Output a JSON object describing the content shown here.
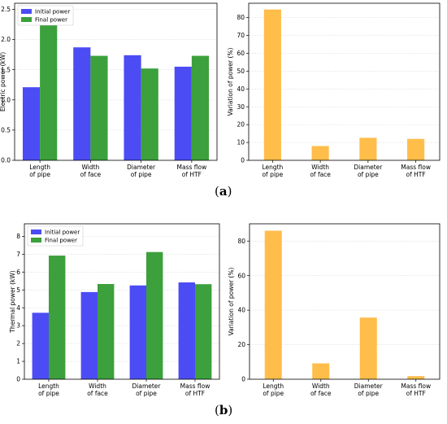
{
  "panel_labels": {
    "a": "a",
    "b": "b"
  },
  "colors": {
    "initial": "#4c4cf5",
    "final": "#3ca03c",
    "variation": "#ffbd4a",
    "grid": "#dddddd"
  },
  "chart_data": [
    {
      "type": "bar",
      "panel": "a-left",
      "categories": [
        [
          "Length",
          "of pipe"
        ],
        [
          "Width",
          "of face"
        ],
        [
          "Diameter",
          "of pipe"
        ],
        [
          "Mass flow",
          "of HTF"
        ]
      ],
      "series": [
        {
          "name": "Initial power",
          "values": [
            1.21,
            1.87,
            1.74,
            1.55
          ]
        },
        {
          "name": "Final power",
          "values": [
            2.24,
            1.73,
            1.52,
            1.73
          ]
        }
      ],
      "ylabel": "Electric power (kW)",
      "ylim": [
        0,
        2.6
      ],
      "yticks": [
        "0.0",
        "0.5",
        "1.0",
        "1.5",
        "2.0",
        "2.5"
      ],
      "legend": "top-left",
      "grid": true
    },
    {
      "type": "bar",
      "panel": "a-right",
      "categories": [
        [
          "Length",
          "of pipe"
        ],
        [
          "Width",
          "of face"
        ],
        [
          "Diameter",
          "of pipe"
        ],
        [
          "Mass flow",
          "of HTF"
        ]
      ],
      "series": [
        {
          "values": [
            84.5,
            8.0,
            12.6,
            12.0
          ]
        }
      ],
      "ylabel": "Variation of power (%)",
      "ylim": [
        0,
        88
      ],
      "yticks": [
        "0",
        "10",
        "20",
        "30",
        "40",
        "50",
        "60",
        "70",
        "80"
      ],
      "grid": true
    },
    {
      "type": "bar",
      "panel": "b-left",
      "categories": [
        [
          "Length",
          "of pipe"
        ],
        [
          "Width",
          "of face"
        ],
        [
          "Diameter",
          "of pipe"
        ],
        [
          "Mass flow",
          "of HTF"
        ]
      ],
      "series": [
        {
          "name": "Initial power",
          "values": [
            3.72,
            4.88,
            5.25,
            5.42
          ]
        },
        {
          "name": "Final power",
          "values": [
            6.92,
            5.33,
            7.12,
            5.32
          ]
        }
      ],
      "ylabel": "Thermal power (kW)",
      "ylim": [
        0,
        8.7
      ],
      "yticks": [
        "0",
        "1",
        "2",
        "3",
        "4",
        "5",
        "6",
        "7",
        "8"
      ],
      "legend": "top-left",
      "grid": true
    },
    {
      "type": "bar",
      "panel": "b-right",
      "categories": [
        [
          "Length",
          "of pipe"
        ],
        [
          "Width",
          "of face"
        ],
        [
          "Diameter",
          "of pipe"
        ],
        [
          "Mass flow",
          "of HTF"
        ]
      ],
      "series": [
        {
          "values": [
            86.0,
            9.2,
            35.7,
            1.8
          ]
        }
      ],
      "ylabel": "Variation of power (%)",
      "ylim": [
        0,
        90
      ],
      "yticks": [
        "0",
        "20",
        "40",
        "60",
        "80"
      ],
      "grid": true
    }
  ]
}
